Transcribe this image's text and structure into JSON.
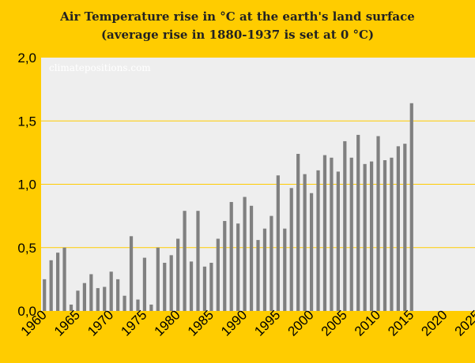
{
  "chart_data": {
    "type": "bar",
    "title": "Air Temperature rise in °C at the earth's land surface",
    "subtitle": "(average rise in 1880-1937 is set at 0 °C)",
    "watermark": "climatepositions.com",
    "xlabel": "",
    "ylabel": "",
    "ylim": [
      0,
      2
    ],
    "yticks": [
      "0,0",
      "0,5",
      "1,0",
      "1,5",
      "2,0"
    ],
    "xticks": [
      "1960",
      "1965",
      "1970",
      "1975",
      "1980",
      "1985",
      "1990",
      "1995",
      "2000",
      "2005",
      "2010",
      "2015",
      "2020",
      "2025"
    ],
    "xlim": [
      1960,
      2025
    ],
    "grid": true,
    "colors": {
      "background": "#ffcc00",
      "plot_area": "#eeeeee",
      "bar": "#808080",
      "grid": "#ffcc00"
    },
    "years": [
      1960,
      1961,
      1962,
      1963,
      1964,
      1965,
      1966,
      1967,
      1968,
      1969,
      1970,
      1971,
      1972,
      1973,
      1974,
      1975,
      1976,
      1977,
      1978,
      1979,
      1980,
      1981,
      1982,
      1983,
      1984,
      1985,
      1986,
      1987,
      1988,
      1989,
      1990,
      1991,
      1992,
      1993,
      1994,
      1995,
      1996,
      1997,
      1998,
      1999,
      2000,
      2001,
      2002,
      2003,
      2004,
      2005,
      2006,
      2007,
      2008,
      2009,
      2010,
      2011,
      2012,
      2013,
      2014,
      2015
    ],
    "values": [
      0.25,
      0.4,
      0.46,
      0.5,
      0.05,
      0.16,
      0.22,
      0.29,
      0.18,
      0.19,
      0.31,
      0.25,
      0.12,
      0.59,
      0.09,
      0.42,
      0.05,
      0.5,
      0.38,
      0.44,
      0.57,
      0.79,
      0.39,
      0.79,
      0.35,
      0.38,
      0.57,
      0.71,
      0.86,
      0.69,
      0.9,
      0.83,
      0.56,
      0.65,
      0.75,
      1.07,
      0.65,
      0.97,
      1.24,
      1.08,
      0.93,
      1.11,
      1.23,
      1.21,
      1.1,
      1.34,
      1.21,
      1.39,
      1.16,
      1.18,
      1.38,
      1.19,
      1.21,
      1.3,
      1.32,
      1.64
    ]
  }
}
